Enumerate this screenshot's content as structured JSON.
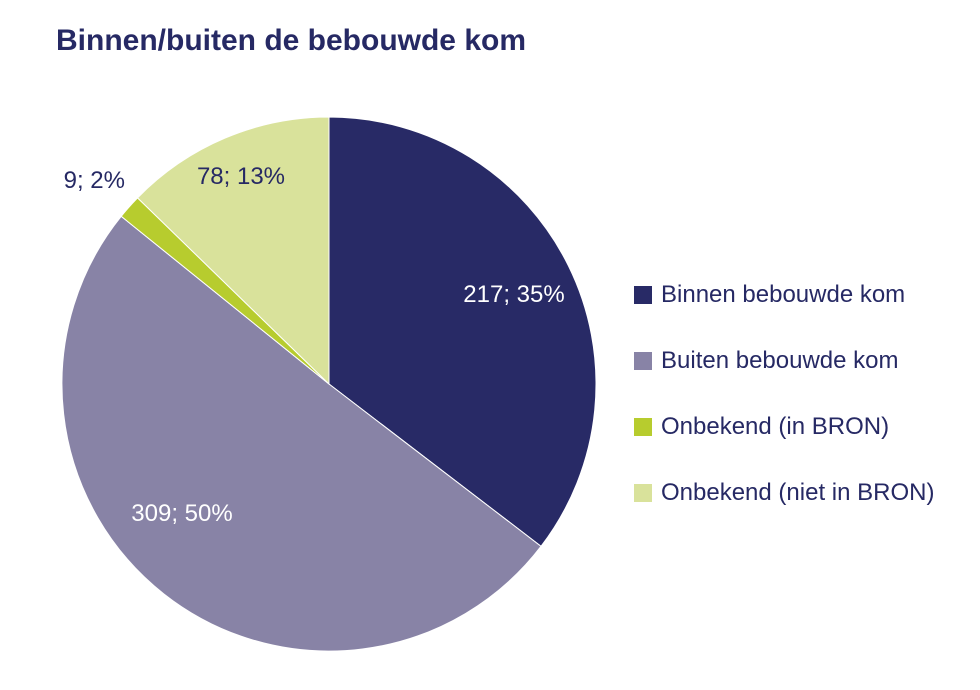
{
  "chart_data": {
    "type": "pie",
    "title": "Binnen/buiten de bebouwde kom",
    "slices": [
      {
        "name": "Binnen bebouwde kom",
        "value": 217,
        "percent": 35,
        "label": "217; 35%",
        "color": "#282A66",
        "label_color": "#ffffff"
      },
      {
        "name": "Buiten bebouwde kom",
        "value": 309,
        "percent": 50,
        "label": "309; 50%",
        "color": "#8883A6",
        "label_color": "#ffffff"
      },
      {
        "name": "Onbekend (in BRON)",
        "value": 9,
        "percent": 2,
        "label": "9; 2%",
        "color": "#B7CC2E",
        "label_color": "#262964"
      },
      {
        "name": "Onbekend (niet in BRON)",
        "value": 78,
        "percent": 13,
        "label": "78; 13%",
        "color": "#D9E29B",
        "label_color": "#262964"
      }
    ],
    "legend_position": "right"
  }
}
